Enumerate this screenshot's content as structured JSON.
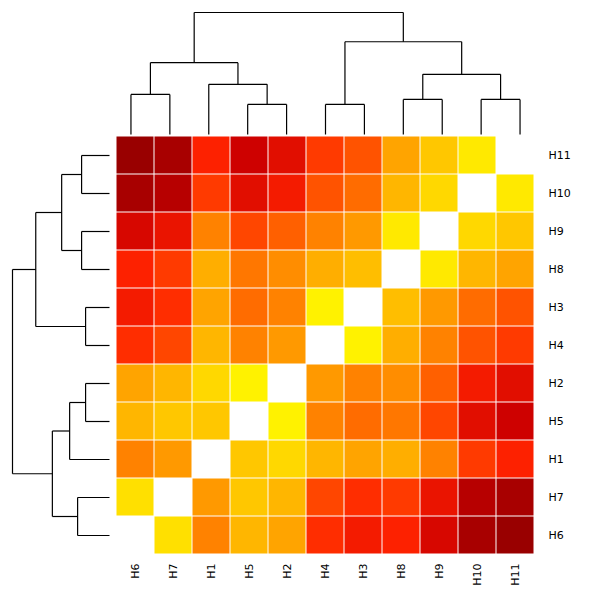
{
  "chart_data": {
    "type": "heatmap",
    "x_categories": [
      "H6",
      "H7",
      "H1",
      "H5",
      "H2",
      "H4",
      "H3",
      "H8",
      "H9",
      "H10",
      "H11"
    ],
    "y_categories": [
      "H11",
      "H10",
      "H9",
      "H8",
      "H3",
      "H4",
      "H2",
      "H5",
      "H1",
      "H7",
      "H6"
    ],
    "values": [
      [
        38,
        36,
        26,
        31,
        29,
        24,
        22,
        15,
        11,
        7,
        0
      ],
      [
        36,
        34,
        24,
        29,
        27,
        22,
        20,
        13,
        9,
        0,
        7
      ],
      [
        30,
        28,
        18,
        23,
        21,
        18,
        16,
        7,
        0,
        9,
        11
      ],
      [
        26,
        24,
        14,
        19,
        17,
        14,
        12,
        0,
        7,
        13,
        15
      ],
      [
        27,
        25,
        15,
        20,
        18,
        6,
        0,
        12,
        16,
        20,
        22
      ],
      [
        25,
        23,
        13,
        18,
        16,
        0,
        6,
        14,
        18,
        22,
        24
      ],
      [
        15,
        13,
        9,
        6,
        0,
        16,
        18,
        17,
        21,
        27,
        29
      ],
      [
        13,
        11,
        11,
        0,
        6,
        18,
        20,
        19,
        23,
        29,
        31
      ],
      [
        18,
        16,
        0,
        11,
        9,
        13,
        15,
        14,
        18,
        24,
        26
      ],
      [
        8,
        0,
        16,
        11,
        13,
        23,
        25,
        24,
        28,
        34,
        36
      ],
      [
        0,
        8,
        18,
        13,
        15,
        25,
        27,
        26,
        30,
        36,
        38
      ]
    ],
    "color_range": [
      0,
      38
    ],
    "colormap": {
      "positions": [
        0.0,
        0.03,
        0.12,
        0.22,
        0.38,
        0.54,
        0.68,
        0.82,
        1.0
      ],
      "colors": [
        "#ffffff",
        "#ffffe0",
        "#ffff00",
        "#ffdd00",
        "#ffaa00",
        "#ff6600",
        "#ff2200",
        "#cc0000",
        "#990000"
      ]
    },
    "dendrogram": {
      "height": 24.333333333333332,
      "children": [
        {
          "height": 14.333333333333334,
          "children": [
            {
              "height": 8,
              "children": [
                "H6",
                "H7"
              ]
            },
            {
              "height": 10,
              "children": [
                "H1",
                {
                  "height": 6,
                  "children": [
                    "H5",
                    "H2"
                  ]
                }
              ]
            }
          ]
        },
        {
          "height": 18.5,
          "children": [
            {
              "height": 6,
              "children": [
                "H4",
                "H3"
              ]
            },
            {
              "height": 12,
              "children": [
                {
                  "height": 7,
                  "children": [
                    "H8",
                    "H9"
                  ]
                },
                {
                  "height": 7,
                  "children": [
                    "H10",
                    "H11"
                  ]
                }
              ]
            }
          ]
        }
      ]
    }
  }
}
